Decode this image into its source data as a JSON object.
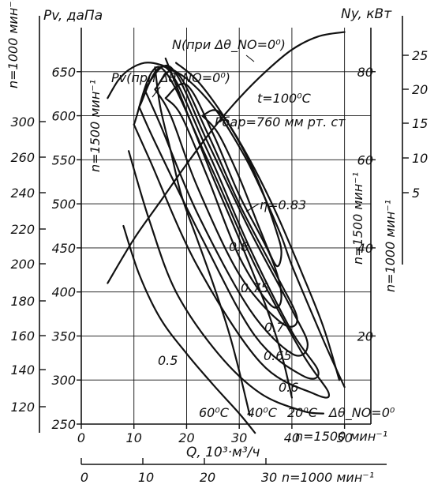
{
  "chart_data": {
    "type": "line",
    "title": "",
    "axis_labels": {
      "pv": "Pv, даПа",
      "ny": "Ny, кВт",
      "q": "Q, 10³·м³/ч"
    },
    "speed_labels": {
      "n1000_left": "n=1000 мин⁻¹",
      "n1500_left": "n=1500 мин⁻¹",
      "n1500_right": "n=1500 мин⁻¹",
      "n1000_right": "n=1000 мин⁻¹",
      "n1500_bottom": "n=1500 мин⁻¹",
      "n1000_bottom": "n=1000 мин⁻¹"
    },
    "annotations": {
      "n_curve": "N(при Δθ_NO=0⁰)",
      "pv_curve": "Pv(при Δθ_NO=0⁰)",
      "temperature": "t=100⁰C",
      "pressure": "Pбар=760 мм рт. ст",
      "t60": "60⁰C",
      "t40": "40⁰C",
      "t20": "20⁰C",
      "t0": "Δθ_NO=0⁰"
    },
    "q_axis_1500": {
      "ticks": [
        "0",
        "10",
        "20",
        "30",
        "40",
        "50"
      ],
      "range": [
        0,
        55
      ]
    },
    "q_axis_1000": {
      "ticks": [
        "0",
        "10",
        "20",
        "30"
      ],
      "range": [
        0,
        40
      ]
    },
    "pv_axis_1500": {
      "ticks": [
        "250",
        "300",
        "350",
        "400",
        "450",
        "500",
        "550",
        "600",
        "650"
      ],
      "range": [
        250,
        700
      ]
    },
    "pv_axis_1000": {
      "ticks": [
        "120",
        "140",
        "160",
        "180",
        "200",
        "220",
        "240",
        "260",
        "300"
      ],
      "range": [
        120,
        320
      ]
    },
    "ny_axis_1500": {
      "ticks": [
        "20",
        "40",
        "60",
        "80"
      ],
      "range": [
        0,
        90
      ]
    },
    "ny_axis_1000": {
      "ticks": [
        "5",
        "10",
        "15",
        "20",
        "25"
      ],
      "range": [
        0,
        28
      ]
    },
    "efficiency_labels": [
      "η=0.83",
      "0.8",
      "0.75",
      "0.7",
      "0.65",
      "0.6",
      "0.5"
    ],
    "series": [
      {
        "name": "Pv(при Δθ_NO=0⁰)",
        "axis": "pv_1500",
        "x": [
          5,
          7,
          9,
          12,
          15,
          18,
          20,
          23,
          26,
          29,
          32,
          35,
          38,
          40,
          43,
          46,
          48,
          50
        ],
        "y": [
          620,
          640,
          652,
          660,
          658,
          650,
          642,
          625,
          603,
          575,
          543,
          505,
          463,
          430,
          387,
          345,
          318,
          292
        ]
      },
      {
        "name": "N(при Δθ_NO=0⁰)",
        "axis": "ny_1500",
        "x": [
          5,
          10,
          15,
          20,
          25,
          30,
          35,
          40,
          45,
          50
        ],
        "y": [
          32,
          42,
          50.5,
          59,
          67,
          74,
          80,
          85,
          88,
          89
        ]
      },
      {
        "name": "60⁰C",
        "axis": "pv_1500",
        "x": [
          8,
          11,
          15,
          20,
          25,
          30,
          33
        ],
        "y": [
          475,
          420,
          370,
          330,
          295,
          262,
          240
        ]
      },
      {
        "name": "40⁰C",
        "axis": "pv_1500",
        "x": [
          14,
          15,
          17,
          19,
          22,
          25,
          28,
          30,
          32
        ],
        "y": [
          655,
          610,
          560,
          510,
          460,
          410,
          355,
          310,
          260
        ]
      },
      {
        "name": "20⁰C",
        "axis": "pv_1500",
        "x": [
          16,
          19,
          22,
          25,
          30,
          35,
          38,
          40
        ],
        "y": [
          665,
          620,
          575,
          530,
          460,
          385,
          330,
          280
        ]
      },
      {
        "name": "Δθ_NO=0⁰",
        "axis": "pv_1500",
        "x": [
          18,
          22,
          27,
          32,
          37,
          42,
          46,
          49
        ],
        "y": [
          660,
          640,
          600,
          550,
          490,
          420,
          360,
          300
        ]
      }
    ],
    "efficiency_contours": [
      {
        "label": "η=0.83",
        "x": [
          23,
          26,
          30,
          34,
          37,
          38,
          37,
          34,
          30,
          26,
          23
        ],
        "y": [
          600,
          605,
          570,
          520,
          470,
          445,
          430,
          470,
          530,
          580,
          600
        ]
      },
      {
        "label": "0.8",
        "x": [
          16,
          20,
          25,
          30,
          36,
          38,
          36,
          30,
          24,
          19,
          16
        ],
        "y": [
          620,
          635,
          580,
          510,
          440,
          395,
          385,
          440,
          530,
          600,
          620
        ]
      },
      {
        "label": "0.75",
        "x": [
          14,
          18,
          24,
          30,
          37,
          41,
          38,
          30,
          22,
          17,
          14
        ],
        "y": [
          630,
          650,
          580,
          500,
          420,
          370,
          365,
          420,
          520,
          600,
          630
        ]
      },
      {
        "label": "0.7",
        "x": [
          12,
          17,
          24,
          32,
          40,
          43,
          40,
          32,
          22,
          15,
          12
        ],
        "y": [
          630,
          655,
          570,
          470,
          380,
          340,
          330,
          380,
          490,
          590,
          630
        ]
      },
      {
        "label": "0.65",
        "x": [
          11,
          16,
          24,
          32,
          40,
          45,
          42,
          33,
          23,
          14,
          11
        ],
        "y": [
          610,
          655,
          560,
          450,
          355,
          310,
          305,
          350,
          460,
          570,
          610
        ]
      },
      {
        "label": "0.6",
        "x": [
          10,
          15,
          24,
          33,
          42,
          47,
          44,
          34,
          22,
          13,
          10
        ],
        "y": [
          590,
          655,
          550,
          430,
          330,
          285,
          285,
          320,
          430,
          550,
          590
        ]
      },
      {
        "label": "0.5",
        "x": [
          9,
          13,
          18,
          26,
          34,
          42,
          46
        ],
        "y": [
          560,
          480,
          400,
          330,
          285,
          265,
          262
        ]
      }
    ],
    "grid": true,
    "legend": "none"
  }
}
